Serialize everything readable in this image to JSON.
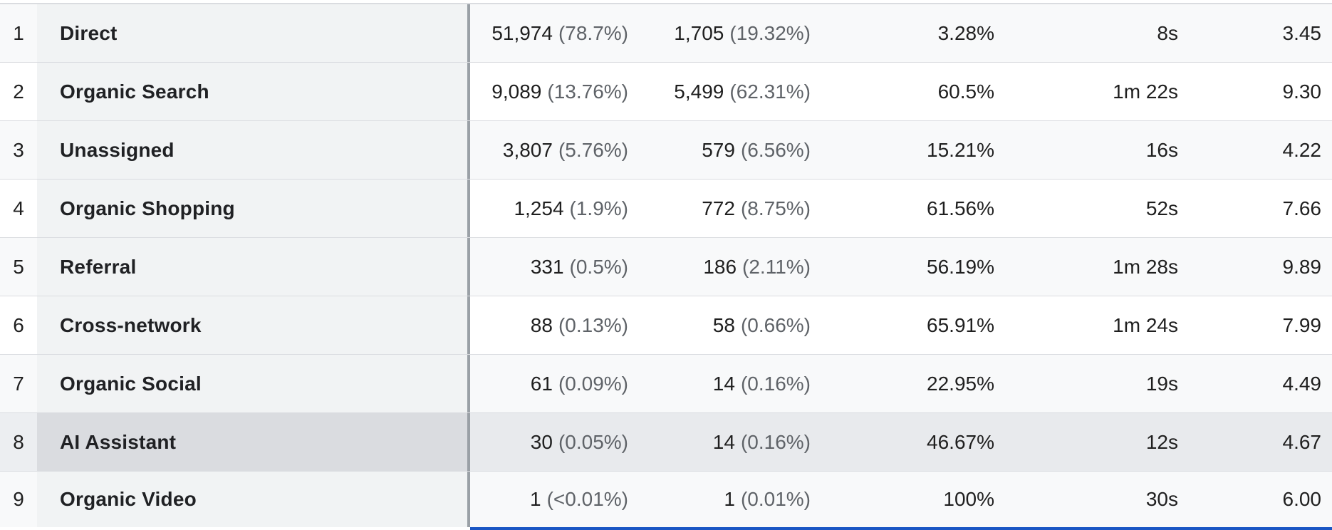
{
  "table": {
    "rows": [
      {
        "index": "1",
        "channel": "Direct",
        "users": "51,974",
        "users_pct": "(78.7%)",
        "new_users": "1,705",
        "new_users_pct": "(19.32%)",
        "engagement_rate": "3.28%",
        "avg_time": "8s",
        "events": "3.45"
      },
      {
        "index": "2",
        "channel": "Organic Search",
        "users": "9,089",
        "users_pct": "(13.76%)",
        "new_users": "5,499",
        "new_users_pct": "(62.31%)",
        "engagement_rate": "60.5%",
        "avg_time": "1m 22s",
        "events": "9.30"
      },
      {
        "index": "3",
        "channel": "Unassigned",
        "users": "3,807",
        "users_pct": "(5.76%)",
        "new_users": "579",
        "new_users_pct": "(6.56%)",
        "engagement_rate": "15.21%",
        "avg_time": "16s",
        "events": "4.22"
      },
      {
        "index": "4",
        "channel": "Organic Shopping",
        "users": "1,254",
        "users_pct": "(1.9%)",
        "new_users": "772",
        "new_users_pct": "(8.75%)",
        "engagement_rate": "61.56%",
        "avg_time": "52s",
        "events": "7.66"
      },
      {
        "index": "5",
        "channel": "Referral",
        "users": "331",
        "users_pct": "(0.5%)",
        "new_users": "186",
        "new_users_pct": "(2.11%)",
        "engagement_rate": "56.19%",
        "avg_time": "1m 28s",
        "events": "9.89"
      },
      {
        "index": "6",
        "channel": "Cross-network",
        "users": "88",
        "users_pct": "(0.13%)",
        "new_users": "58",
        "new_users_pct": "(0.66%)",
        "engagement_rate": "65.91%",
        "avg_time": "1m 24s",
        "events": "7.99"
      },
      {
        "index": "7",
        "channel": "Organic Social",
        "users": "61",
        "users_pct": "(0.09%)",
        "new_users": "14",
        "new_users_pct": "(0.16%)",
        "engagement_rate": "22.95%",
        "avg_time": "19s",
        "events": "4.49"
      },
      {
        "index": "8",
        "channel": "AI Assistant",
        "users": "30",
        "users_pct": "(0.05%)",
        "new_users": "14",
        "new_users_pct": "(0.16%)",
        "engagement_rate": "46.67%",
        "avg_time": "12s",
        "events": "4.67"
      },
      {
        "index": "9",
        "channel": "Organic Video",
        "users": "1",
        "users_pct": "(<0.01%)",
        "new_users": "1",
        "new_users_pct": "(0.01%)",
        "engagement_rate": "100%",
        "avg_time": "30s",
        "events": "6.00"
      }
    ]
  },
  "colors": {
    "row_alt": "#f8f9fa",
    "row_hover": "#e8eaed",
    "name_column": "#f1f3f4",
    "secondary_text": "#5f6368",
    "selection_underline": "#1a56c4"
  }
}
